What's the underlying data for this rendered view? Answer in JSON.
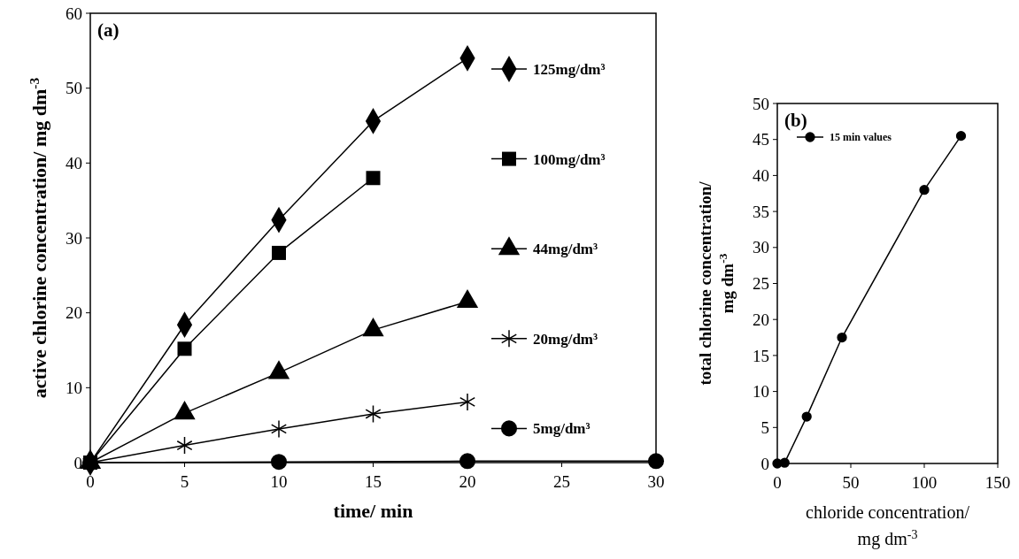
{
  "chart_data": [
    {
      "type": "line",
      "xlabel": "time/ min",
      "ylabel": "active chlorine concentration/ mg dm$^{-3}$",
      "annotations": [
        "(a)"
      ],
      "xlim": [
        0,
        30
      ],
      "ylim": [
        0,
        60
      ],
      "xticks": [
        0,
        5,
        10,
        15,
        20,
        25,
        30
      ],
      "yticks": [
        0,
        10,
        20,
        30,
        40,
        50,
        60
      ],
      "legend": "right",
      "line_style": "solid",
      "series": [
        {
          "name": "125mg/dm³",
          "color": "#000000",
          "marker": "diamond",
          "x": [
            20,
            15,
            10,
            5,
            0
          ],
          "values": [
            54,
            45.6,
            32.4,
            18.4,
            0
          ]
        },
        {
          "name": "100mg/dm³",
          "color": "#000000",
          "marker": "square",
          "x": [
            15,
            10,
            5,
            0
          ],
          "values": [
            38,
            28,
            15.2,
            0
          ]
        },
        {
          "name": "44mg/dm³",
          "color": "#000000",
          "marker": "triangle",
          "x": [
            20,
            15,
            10,
            5,
            0
          ],
          "values": [
            21.5,
            17.7,
            12,
            6.6,
            0
          ]
        },
        {
          "name": "20mg/dm³",
          "color": "#000000",
          "marker": "cross",
          "x": [
            20,
            15,
            10,
            5,
            0
          ],
          "values": [
            8.1,
            6.5,
            4.5,
            2.3,
            0
          ]
        },
        {
          "name": "5mg/dm³",
          "color": "#000000",
          "marker": "circle",
          "x": [
            30,
            20,
            10,
            0
          ],
          "values": [
            0.2,
            0.2,
            0.1,
            0
          ]
        }
      ]
    },
    {
      "type": "line",
      "xlabel": "chloride concentration/\nmg dm$^{-3}$",
      "ylabel": "total chlorine concentration/\nmg dm$^{-3}$",
      "annotations": [
        "(b)"
      ],
      "xlim": [
        0,
        150
      ],
      "ylim": [
        0,
        50
      ],
      "xticks": [
        0,
        50,
        100,
        150
      ],
      "yticks": [
        0,
        5,
        10,
        15,
        20,
        25,
        30,
        35,
        40,
        45,
        50
      ],
      "legend": "top left",
      "line_style": "solid",
      "series": [
        {
          "name": "15 min values",
          "color": "#000000",
          "marker": "circle",
          "x": [
            0,
            5,
            20,
            44,
            100,
            125
          ],
          "values": [
            0,
            0.1,
            6.5,
            17.5,
            38,
            45.5
          ]
        }
      ]
    }
  ]
}
